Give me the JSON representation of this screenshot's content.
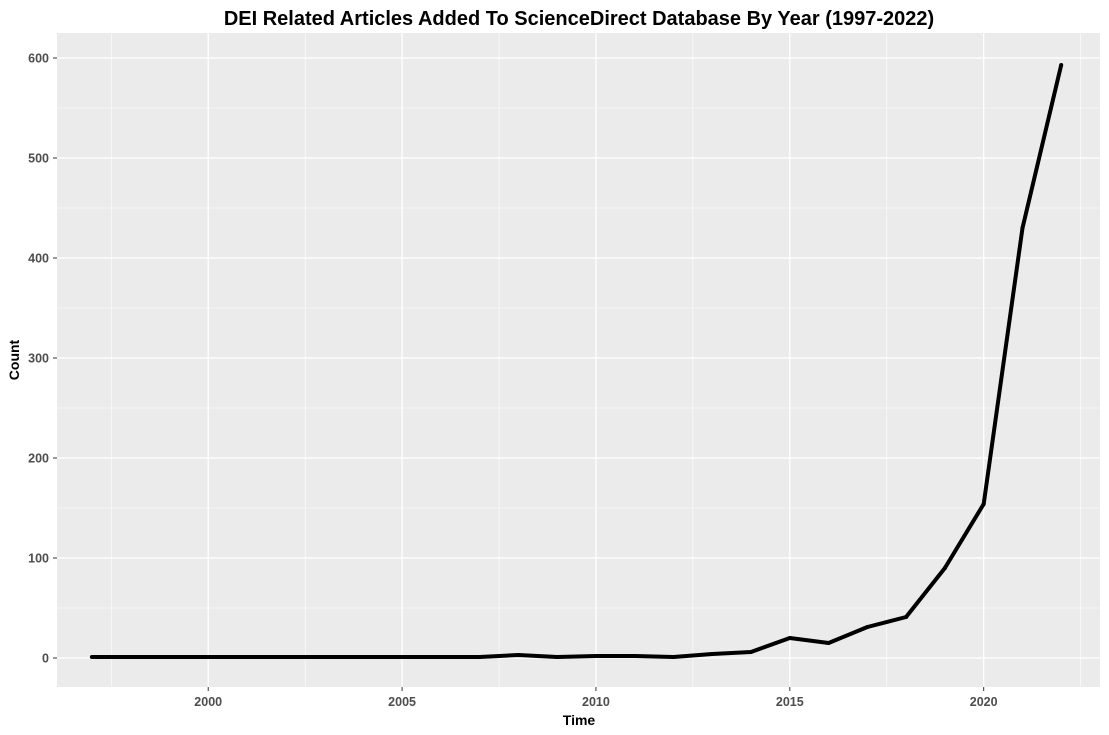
{
  "chart_data": {
    "type": "line",
    "title": "DEI Related Articles Added To ScienceDirect Database By Year (1997-2022)",
    "xlabel": "Time",
    "ylabel": "Count",
    "xlim": [
      1996.1,
      2023.0
    ],
    "ylim": [
      -29,
      625
    ],
    "x_ticks": [
      2000,
      2005,
      2010,
      2015,
      2020
    ],
    "x_tick_labels": [
      "2000",
      "2005",
      "2010",
      "2015",
      "2020"
    ],
    "y_ticks": [
      0,
      100,
      200,
      300,
      400,
      500,
      600
    ],
    "y_tick_labels": [
      "0",
      "100",
      "200",
      "300",
      "400",
      "500",
      "600"
    ],
    "grid": true,
    "background_color": "#ebebeb",
    "grid_color": "#ffffff",
    "line_color": "#000000",
    "series": [
      {
        "x": [
          1997,
          1998,
          1999,
          2000,
          2001,
          2002,
          2003,
          2004,
          2005,
          2006,
          2007,
          2008,
          2009,
          2010,
          2011,
          2012,
          2013,
          2014,
          2015,
          2016,
          2017,
          2018,
          2019,
          2020,
          2021,
          2022
        ],
        "values": [
          1,
          1,
          1,
          1,
          1,
          1,
          1,
          1,
          1,
          1,
          1,
          3,
          1,
          2,
          2,
          1,
          4,
          6,
          20,
          15,
          31,
          41,
          90,
          154,
          430,
          593
        ]
      }
    ]
  }
}
